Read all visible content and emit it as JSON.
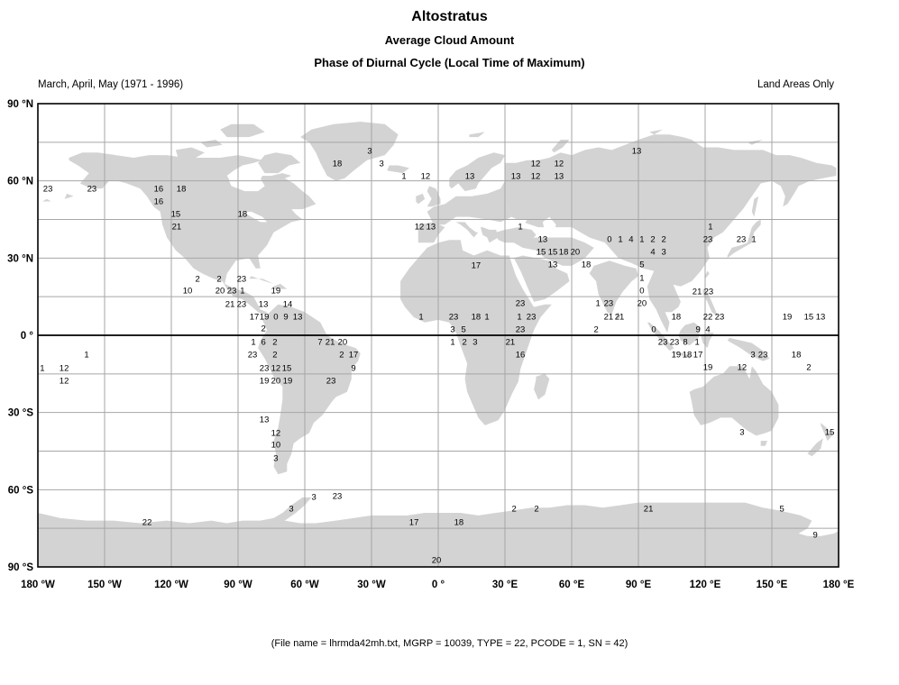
{
  "header": {
    "title": "Altostratus",
    "subtitle1": "Average Cloud Amount",
    "subtitle2": "Phase of Diurnal Cycle (Local Time of Maximum)",
    "season": "March, April, May (1971 - 1996)",
    "coverage": "Land Areas Only"
  },
  "footer": {
    "note": "(File name = lhrmda42mh.txt, MGRP = 10039, TYPE = 22, PCODE = 1, SN = 42)"
  },
  "axes": {
    "lon_range": [
      -180,
      180
    ],
    "lat_range": [
      -90,
      90
    ],
    "lon_grid_step_deg": 30,
    "lat_grid_step_deg": 15,
    "lon_ticks": [
      {
        "deg": -180,
        "label": "180 °W"
      },
      {
        "deg": -150,
        "label": "150 °W"
      },
      {
        "deg": -120,
        "label": "120 °W"
      },
      {
        "deg": -90,
        "label": "90 °W"
      },
      {
        "deg": -60,
        "label": "60 °W"
      },
      {
        "deg": -30,
        "label": "30 °W"
      },
      {
        "deg": 0,
        "label": "0 °"
      },
      {
        "deg": 30,
        "label": "30 °E"
      },
      {
        "deg": 60,
        "label": "60 °E"
      },
      {
        "deg": 90,
        "label": "90 °E"
      },
      {
        "deg": 120,
        "label": "120 °E"
      },
      {
        "deg": 150,
        "label": "150 °E"
      },
      {
        "deg": 180,
        "label": "180 °E"
      }
    ],
    "lat_ticks": [
      {
        "deg": 90,
        "label": "90 °N"
      },
      {
        "deg": 60,
        "label": "60 °N"
      },
      {
        "deg": 30,
        "label": "30 °N"
      },
      {
        "deg": 0,
        "label": "0 °"
      },
      {
        "deg": -30,
        "label": "30 °S"
      },
      {
        "deg": -60,
        "label": "60 °S"
      },
      {
        "deg": -90,
        "label": "90 °S"
      }
    ]
  },
  "colors": {
    "land": "#d3d3d3",
    "ocean": "#ffffff",
    "grid": "#a6a6a6",
    "equator": "#000000",
    "frame": "#000000",
    "text": "#000000"
  },
  "chart_data": {
    "type": "scatter",
    "title": "Altostratus",
    "value_label": "Local time of maximum",
    "points": [
      {
        "lon": -175.5,
        "lat": 57.1,
        "v": "23"
      },
      {
        "lon": -155.7,
        "lat": 57.1,
        "v": "23"
      },
      {
        "lon": -125.7,
        "lat": 57.1,
        "v": "16"
      },
      {
        "lon": -115.5,
        "lat": 57.1,
        "v": "18"
      },
      {
        "lon": -125.7,
        "lat": 52.2,
        "v": "16"
      },
      {
        "lon": -118.0,
        "lat": 47.3,
        "v": "15"
      },
      {
        "lon": -88.0,
        "lat": 47.3,
        "v": "18"
      },
      {
        "lon": -117.6,
        "lat": 42.4,
        "v": "21"
      },
      {
        "lon": -30.8,
        "lat": 71.8,
        "v": "3"
      },
      {
        "lon": -45.4,
        "lat": 66.9,
        "v": "18"
      },
      {
        "lon": -25.5,
        "lat": 66.9,
        "v": "3"
      },
      {
        "lon": -15.4,
        "lat": 62.0,
        "v": "1"
      },
      {
        "lon": -5.7,
        "lat": 62.0,
        "v": "12"
      },
      {
        "lon": 14.2,
        "lat": 62.0,
        "v": "13"
      },
      {
        "lon": 34.9,
        "lat": 62.0,
        "v": "13"
      },
      {
        "lon": 43.8,
        "lat": 66.9,
        "v": "12"
      },
      {
        "lon": 54.3,
        "lat": 66.9,
        "v": "12"
      },
      {
        "lon": 43.8,
        "lat": 62.0,
        "v": "12"
      },
      {
        "lon": 54.3,
        "lat": 62.0,
        "v": "13"
      },
      {
        "lon": -8.5,
        "lat": 42.4,
        "v": "12"
      },
      {
        "lon": -3.3,
        "lat": 42.4,
        "v": "13"
      },
      {
        "lon": 36.9,
        "lat": 42.4,
        "v": "1"
      },
      {
        "lon": 47.0,
        "lat": 37.5,
        "v": "13"
      },
      {
        "lon": 89.2,
        "lat": 71.8,
        "v": "13"
      },
      {
        "lon": 122.4,
        "lat": 42.4,
        "v": "1"
      },
      {
        "lon": 121.2,
        "lat": 37.5,
        "v": "23"
      },
      {
        "lon": 136.2,
        "lat": 37.5,
        "v": "23"
      },
      {
        "lon": 141.9,
        "lat": 37.5,
        "v": "1"
      },
      {
        "lon": 77.0,
        "lat": 37.5,
        "v": "0"
      },
      {
        "lon": 81.9,
        "lat": 37.5,
        "v": "1"
      },
      {
        "lon": 86.7,
        "lat": 37.5,
        "v": "4"
      },
      {
        "lon": 91.6,
        "lat": 37.5,
        "v": "1"
      },
      {
        "lon": 96.5,
        "lat": 37.5,
        "v": "2"
      },
      {
        "lon": 101.4,
        "lat": 37.5,
        "v": "2"
      },
      {
        "lon": 46.2,
        "lat": 32.6,
        "v": "15"
      },
      {
        "lon": 51.5,
        "lat": 32.6,
        "v": "15"
      },
      {
        "lon": 56.4,
        "lat": 32.6,
        "v": "18"
      },
      {
        "lon": 61.6,
        "lat": 32.6,
        "v": "20"
      },
      {
        "lon": 96.5,
        "lat": 32.6,
        "v": "4"
      },
      {
        "lon": 101.4,
        "lat": 32.6,
        "v": "3"
      },
      {
        "lon": 51.5,
        "lat": 27.7,
        "v": "13"
      },
      {
        "lon": 66.5,
        "lat": 27.7,
        "v": "18"
      },
      {
        "lon": 91.6,
        "lat": 27.7,
        "v": "5"
      },
      {
        "lon": 91.6,
        "lat": 22.4,
        "v": "1"
      },
      {
        "lon": 91.6,
        "lat": 17.5,
        "v": "0"
      },
      {
        "lon": 91.6,
        "lat": 12.6,
        "v": "20"
      },
      {
        "lon": -108.2,
        "lat": 22.1,
        "v": "2"
      },
      {
        "lon": -98.5,
        "lat": 22.1,
        "v": "2"
      },
      {
        "lon": -88.4,
        "lat": 22.1,
        "v": "23"
      },
      {
        "lon": -112.7,
        "lat": 17.5,
        "v": "10"
      },
      {
        "lon": -98.1,
        "lat": 17.5,
        "v": "20"
      },
      {
        "lon": -92.8,
        "lat": 17.5,
        "v": "23"
      },
      {
        "lon": -88.0,
        "lat": 17.5,
        "v": "1"
      },
      {
        "lon": -73.0,
        "lat": 17.5,
        "v": "19"
      },
      {
        "lon": -93.6,
        "lat": 12.3,
        "v": "21"
      },
      {
        "lon": -88.4,
        "lat": 12.3,
        "v": "23"
      },
      {
        "lon": -78.6,
        "lat": 12.3,
        "v": "13"
      },
      {
        "lon": -67.7,
        "lat": 12.3,
        "v": "14"
      },
      {
        "lon": -82.7,
        "lat": 7.4,
        "v": "17"
      },
      {
        "lon": -78.2,
        "lat": 7.4,
        "v": "19"
      },
      {
        "lon": -73.0,
        "lat": 7.4,
        "v": "0"
      },
      {
        "lon": -68.5,
        "lat": 7.4,
        "v": "9"
      },
      {
        "lon": -63.2,
        "lat": 7.4,
        "v": "13"
      },
      {
        "lon": -78.6,
        "lat": 2.8,
        "v": "2"
      },
      {
        "lon": -83.1,
        "lat": -2.5,
        "v": "1"
      },
      {
        "lon": -78.6,
        "lat": -2.5,
        "v": "6"
      },
      {
        "lon": -73.4,
        "lat": -2.5,
        "v": "2"
      },
      {
        "lon": -53.1,
        "lat": -2.5,
        "v": "7"
      },
      {
        "lon": -48.6,
        "lat": -2.5,
        "v": "21"
      },
      {
        "lon": -43.0,
        "lat": -2.5,
        "v": "20"
      },
      {
        "lon": -83.5,
        "lat": -7.4,
        "v": "23"
      },
      {
        "lon": -73.4,
        "lat": -7.4,
        "v": "2"
      },
      {
        "lon": -43.4,
        "lat": -7.4,
        "v": "2"
      },
      {
        "lon": -38.1,
        "lat": -7.4,
        "v": "17"
      },
      {
        "lon": -78.2,
        "lat": -12.6,
        "v": "23"
      },
      {
        "lon": -73.0,
        "lat": -12.6,
        "v": "12"
      },
      {
        "lon": -68.1,
        "lat": -12.6,
        "v": "15"
      },
      {
        "lon": -38.1,
        "lat": -12.6,
        "v": "9"
      },
      {
        "lon": -78.2,
        "lat": -17.5,
        "v": "19"
      },
      {
        "lon": -73.0,
        "lat": -17.5,
        "v": "20"
      },
      {
        "lon": -67.7,
        "lat": -17.5,
        "v": "19"
      },
      {
        "lon": -48.2,
        "lat": -17.5,
        "v": "23"
      },
      {
        "lon": -78.2,
        "lat": -32.6,
        "v": "13"
      },
      {
        "lon": -73.0,
        "lat": -37.8,
        "v": "12"
      },
      {
        "lon": -73.0,
        "lat": -42.4,
        "v": "10"
      },
      {
        "lon": -73.0,
        "lat": -47.6,
        "v": "3"
      },
      {
        "lon": -55.9,
        "lat": -62.7,
        "v": "3"
      },
      {
        "lon": -45.4,
        "lat": -62.3,
        "v": "23"
      },
      {
        "lon": -66.1,
        "lat": -67.2,
        "v": "3"
      },
      {
        "lon": -130.9,
        "lat": -72.5,
        "v": "22"
      },
      {
        "lon": 17.0,
        "lat": 27.3,
        "v": "17"
      },
      {
        "lon": 36.9,
        "lat": 12.6,
        "v": "23"
      },
      {
        "lon": 71.8,
        "lat": 12.6,
        "v": "1"
      },
      {
        "lon": 76.6,
        "lat": 12.6,
        "v": "23"
      },
      {
        "lon": -7.7,
        "lat": 7.4,
        "v": "1"
      },
      {
        "lon": 6.9,
        "lat": 7.4,
        "v": "23"
      },
      {
        "lon": 17.0,
        "lat": 7.4,
        "v": "18"
      },
      {
        "lon": 21.9,
        "lat": 7.4,
        "v": "1"
      },
      {
        "lon": 36.5,
        "lat": 7.4,
        "v": "1"
      },
      {
        "lon": 41.8,
        "lat": 7.4,
        "v": "23"
      },
      {
        "lon": 76.6,
        "lat": 7.4,
        "v": "21"
      },
      {
        "lon": 81.5,
        "lat": 7.4,
        "v": "21"
      },
      {
        "lon": 6.5,
        "lat": 2.5,
        "v": "3"
      },
      {
        "lon": 11.4,
        "lat": 2.5,
        "v": "5"
      },
      {
        "lon": 36.9,
        "lat": 2.5,
        "v": "23"
      },
      {
        "lon": 71.0,
        "lat": 2.5,
        "v": "2"
      },
      {
        "lon": 6.5,
        "lat": -2.5,
        "v": "1"
      },
      {
        "lon": 11.8,
        "lat": -2.5,
        "v": "2"
      },
      {
        "lon": 16.6,
        "lat": -2.5,
        "v": "3"
      },
      {
        "lon": 32.4,
        "lat": -2.5,
        "v": "21"
      },
      {
        "lon": 36.9,
        "lat": -7.4,
        "v": "16"
      },
      {
        "lon": 116.4,
        "lat": 17.2,
        "v": "21"
      },
      {
        "lon": 121.6,
        "lat": 17.2,
        "v": "23"
      },
      {
        "lon": 107.0,
        "lat": 7.4,
        "v": "18"
      },
      {
        "lon": 121.2,
        "lat": 7.4,
        "v": "22"
      },
      {
        "lon": 126.5,
        "lat": 7.4,
        "v": "23"
      },
      {
        "lon": 156.9,
        "lat": 7.4,
        "v": "19"
      },
      {
        "lon": 166.6,
        "lat": 7.4,
        "v": "15"
      },
      {
        "lon": 171.9,
        "lat": 7.4,
        "v": "13"
      },
      {
        "lon": 96.9,
        "lat": 2.5,
        "v": "0"
      },
      {
        "lon": 116.8,
        "lat": 2.5,
        "v": "9"
      },
      {
        "lon": 121.2,
        "lat": 2.5,
        "v": "4"
      },
      {
        "lon": 101.0,
        "lat": -2.5,
        "v": "23"
      },
      {
        "lon": 106.2,
        "lat": -2.5,
        "v": "23"
      },
      {
        "lon": 111.1,
        "lat": -2.5,
        "v": "8"
      },
      {
        "lon": 116.4,
        "lat": -2.5,
        "v": "1"
      },
      {
        "lon": 107.0,
        "lat": -7.4,
        "v": "19"
      },
      {
        "lon": 111.9,
        "lat": -7.4,
        "v": "18"
      },
      {
        "lon": 116.8,
        "lat": -7.4,
        "v": "17"
      },
      {
        "lon": 141.5,
        "lat": -7.4,
        "v": "3"
      },
      {
        "lon": 146.0,
        "lat": -7.4,
        "v": "23"
      },
      {
        "lon": 161.0,
        "lat": -7.4,
        "v": "18"
      },
      {
        "lon": 121.2,
        "lat": -12.3,
        "v": "19"
      },
      {
        "lon": 136.6,
        "lat": -12.3,
        "v": "12"
      },
      {
        "lon": 166.6,
        "lat": -12.3,
        "v": "2"
      },
      {
        "lon": 136.6,
        "lat": -37.5,
        "v": "3"
      },
      {
        "lon": 176.0,
        "lat": -37.5,
        "v": "15"
      },
      {
        "lon": -10.9,
        "lat": -72.5,
        "v": "17"
      },
      {
        "lon": 9.3,
        "lat": -72.5,
        "v": "18"
      },
      {
        "lon": 34.1,
        "lat": -67.2,
        "v": "2"
      },
      {
        "lon": 44.2,
        "lat": -67.2,
        "v": "2"
      },
      {
        "lon": -0.8,
        "lat": -87.2,
        "v": "20"
      },
      {
        "lon": 94.5,
        "lat": -67.2,
        "v": "21"
      },
      {
        "lon": 154.5,
        "lat": -67.2,
        "v": "5"
      },
      {
        "lon": 169.5,
        "lat": -77.4,
        "v": "9"
      },
      {
        "lon": -158.1,
        "lat": -7.4,
        "v": "1"
      },
      {
        "lon": -178.0,
        "lat": -12.6,
        "v": "1"
      },
      {
        "lon": -168.2,
        "lat": -12.6,
        "v": "12"
      },
      {
        "lon": -168.2,
        "lat": -17.5,
        "v": "12"
      }
    ]
  }
}
